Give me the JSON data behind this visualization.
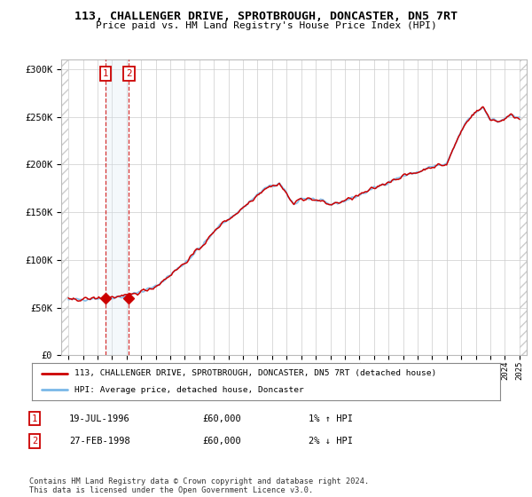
{
  "title": "113, CHALLENGER DRIVE, SPROTBROUGH, DONCASTER, DN5 7RT",
  "subtitle": "Price paid vs. HM Land Registry's House Price Index (HPI)",
  "legend_line1": "113, CHALLENGER DRIVE, SPROTBROUGH, DONCASTER, DN5 7RT (detached house)",
  "legend_line2": "HPI: Average price, detached house, Doncaster",
  "annotation1_date": "19-JUL-1996",
  "annotation1_price": "£60,000",
  "annotation1_hpi": "1% ↑ HPI",
  "annotation2_date": "27-FEB-1998",
  "annotation2_price": "£60,000",
  "annotation2_hpi": "2% ↓ HPI",
  "footer": "Contains HM Land Registry data © Crown copyright and database right 2024.\nThis data is licensed under the Open Government Licence v3.0.",
  "sale1_year": 1996.54,
  "sale1_value": 60000,
  "sale2_year": 1998.16,
  "sale2_value": 60000,
  "hpi_color": "#7ab8e8",
  "price_color": "#cc0000",
  "sale_dot_color": "#cc0000",
  "shaded_color": "#dce9f5",
  "annotation_box_color": "#cc0000",
  "background_color": "#ffffff",
  "grid_color": "#cccccc",
  "hatch_color": "#cccccc",
  "ylim": [
    0,
    310000
  ],
  "yticks": [
    0,
    50000,
    100000,
    150000,
    200000,
    250000,
    300000
  ],
  "ytick_labels": [
    "£0",
    "£50K",
    "£100K",
    "£150K",
    "£200K",
    "£250K",
    "£300K"
  ],
  "xmin": 1993.5,
  "xmax": 2025.5,
  "hpi_monthly_years": [
    1994.0,
    1994.083,
    1994.167,
    1994.25,
    1994.333,
    1994.417,
    1994.5,
    1994.583,
    1994.667,
    1994.75,
    1994.833,
    1994.917,
    1995.0,
    1995.083,
    1995.167,
    1995.25,
    1995.333,
    1995.417,
    1995.5,
    1995.583,
    1995.667,
    1995.75,
    1995.833,
    1995.917,
    1996.0,
    1996.083,
    1996.167,
    1996.25,
    1996.333,
    1996.417,
    1996.5,
    1996.583,
    1996.667,
    1996.75,
    1996.833,
    1996.917,
    1997.0,
    1997.083,
    1997.167,
    1997.25,
    1997.333,
    1997.417,
    1997.5,
    1997.583,
    1997.667,
    1997.75,
    1997.833,
    1997.917,
    1998.0,
    1998.083,
    1998.167,
    1998.25,
    1998.333,
    1998.417,
    1998.5,
    1998.583,
    1998.667,
    1998.75,
    1998.833,
    1998.917,
    1999.0,
    1999.083,
    1999.167,
    1999.25,
    1999.333,
    1999.417,
    1999.5,
    1999.583,
    1999.667,
    1999.75,
    1999.833,
    1999.917,
    2000.0,
    2000.083,
    2000.167,
    2000.25,
    2000.333,
    2000.417,
    2000.5,
    2000.583,
    2000.667,
    2000.75,
    2000.833,
    2000.917,
    2001.0,
    2001.083,
    2001.167,
    2001.25,
    2001.333,
    2001.417,
    2001.5,
    2001.583,
    2001.667,
    2001.75,
    2001.833,
    2001.917,
    2002.0,
    2002.083,
    2002.167,
    2002.25,
    2002.333,
    2002.417,
    2002.5,
    2002.583,
    2002.667,
    2002.75,
    2002.833,
    2002.917,
    2003.0,
    2003.083,
    2003.167,
    2003.25,
    2003.333,
    2003.417,
    2003.5,
    2003.583,
    2003.667,
    2003.75,
    2003.833,
    2003.917,
    2004.0,
    2004.083,
    2004.167,
    2004.25,
    2004.333,
    2004.417,
    2004.5,
    2004.583,
    2004.667,
    2004.75,
    2004.833,
    2004.917,
    2005.0,
    2005.083,
    2005.167,
    2005.25,
    2005.333,
    2005.417,
    2005.5,
    2005.583,
    2005.667,
    2005.75,
    2005.833,
    2005.917,
    2006.0,
    2006.083,
    2006.167,
    2006.25,
    2006.333,
    2006.417,
    2006.5,
    2006.583,
    2006.667,
    2006.75,
    2006.833,
    2006.917,
    2007.0,
    2007.083,
    2007.167,
    2007.25,
    2007.333,
    2007.417,
    2007.5,
    2007.583,
    2007.667,
    2007.75,
    2007.833,
    2007.917,
    2008.0,
    2008.083,
    2008.167,
    2008.25,
    2008.333,
    2008.417,
    2008.5,
    2008.583,
    2008.667,
    2008.75,
    2008.833,
    2008.917,
    2009.0,
    2009.083,
    2009.167,
    2009.25,
    2009.333,
    2009.417,
    2009.5,
    2009.583,
    2009.667,
    2009.75,
    2009.833,
    2009.917,
    2010.0,
    2010.083,
    2010.167,
    2010.25,
    2010.333,
    2010.417,
    2010.5,
    2010.583,
    2010.667,
    2010.75,
    2010.833,
    2010.917,
    2011.0,
    2011.083,
    2011.167,
    2011.25,
    2011.333,
    2011.417,
    2011.5,
    2011.583,
    2011.667,
    2011.75,
    2011.833,
    2011.917,
    2012.0,
    2012.083,
    2012.167,
    2012.25,
    2012.333,
    2012.417,
    2012.5,
    2012.583,
    2012.667,
    2012.75,
    2012.833,
    2012.917,
    2013.0,
    2013.083,
    2013.167,
    2013.25,
    2013.333,
    2013.417,
    2013.5,
    2013.583,
    2013.667,
    2013.75,
    2013.833,
    2013.917,
    2014.0,
    2014.083,
    2014.167,
    2014.25,
    2014.333,
    2014.417,
    2014.5,
    2014.583,
    2014.667,
    2014.75,
    2014.833,
    2014.917,
    2015.0,
    2015.083,
    2015.167,
    2015.25,
    2015.333,
    2015.417,
    2015.5,
    2015.583,
    2015.667,
    2015.75,
    2015.833,
    2015.917,
    2016.0,
    2016.083,
    2016.167,
    2016.25,
    2016.333,
    2016.417,
    2016.5,
    2016.583,
    2016.667,
    2016.75,
    2016.833,
    2016.917,
    2017.0,
    2017.083,
    2017.167,
    2017.25,
    2017.333,
    2017.417,
    2017.5,
    2017.583,
    2017.667,
    2017.75,
    2017.833,
    2017.917,
    2018.0,
    2018.083,
    2018.167,
    2018.25,
    2018.333,
    2018.417,
    2018.5,
    2018.583,
    2018.667,
    2018.75,
    2018.833,
    2018.917,
    2019.0,
    2019.083,
    2019.167,
    2019.25,
    2019.333,
    2019.417,
    2019.5,
    2019.583,
    2019.667,
    2019.75,
    2019.833,
    2019.917,
    2020.0,
    2020.083,
    2020.167,
    2020.25,
    2020.333,
    2020.417,
    2020.5,
    2020.583,
    2020.667,
    2020.75,
    2020.833,
    2020.917,
    2021.0,
    2021.083,
    2021.167,
    2021.25,
    2021.333,
    2021.417,
    2021.5,
    2021.583,
    2021.667,
    2021.75,
    2021.833,
    2021.917,
    2022.0,
    2022.083,
    2022.167,
    2022.25,
    2022.333,
    2022.417,
    2022.5,
    2022.583,
    2022.667,
    2022.75,
    2022.833,
    2022.917,
    2023.0,
    2023.083,
    2023.167,
    2023.25,
    2023.333,
    2023.417,
    2023.5,
    2023.583,
    2023.667,
    2023.75,
    2023.833,
    2023.917,
    2024.0,
    2024.083,
    2024.167,
    2024.25,
    2024.333,
    2024.417,
    2024.5,
    2024.583,
    2024.667,
    2024.75,
    2024.833,
    2024.917,
    2025.0
  ]
}
